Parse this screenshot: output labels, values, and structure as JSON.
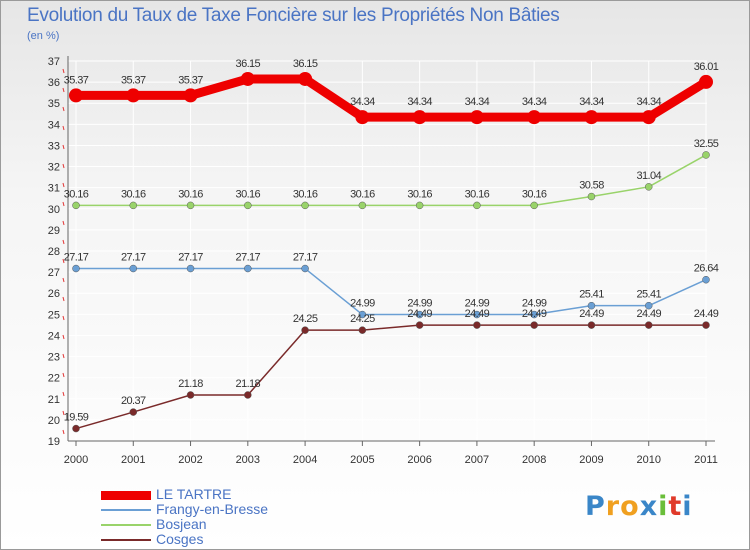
{
  "chart_data": {
    "type": "line",
    "title": "Evolution du Taux de Taxe Foncière sur les Propriétés Non Bâties",
    "unit": "(en %)",
    "xlabel": "",
    "ylabel": "(en %)",
    "x": [
      "2000",
      "2001",
      "2002",
      "2003",
      "2004",
      "2005",
      "2006",
      "2007",
      "2008",
      "2009",
      "2010",
      "2011"
    ],
    "ylim": [
      19,
      37
    ],
    "yticks": [
      "19",
      "20",
      "21",
      "22",
      "23",
      "24",
      "25",
      "26",
      "27",
      "28",
      "29",
      "30",
      "31",
      "32",
      "33",
      "34",
      "35",
      "36",
      "37"
    ],
    "grid": true,
    "series": [
      {
        "name": "LE TARTRE",
        "color": "#ee0000",
        "values": [
          35.37,
          35.37,
          35.37,
          36.15,
          36.15,
          34.34,
          34.34,
          34.34,
          34.34,
          34.34,
          34.34,
          36.01
        ],
        "labels": [
          "35.37",
          "35.37",
          "35.37",
          "36.15",
          "36.15",
          "34.34",
          "34.34",
          "34.34",
          "34.34",
          "34.34",
          "34.34",
          "36.01"
        ]
      },
      {
        "name": "Frangy-en-Bresse",
        "color": "#6a9fd4",
        "values": [
          27.17,
          27.17,
          27.17,
          27.17,
          27.17,
          24.99,
          24.99,
          24.99,
          24.99,
          25.41,
          25.41,
          26.64
        ],
        "labels": [
          "27.17",
          "27.17",
          "27.17",
          "27.17",
          "27.17",
          "24.99",
          "24.99",
          "24.99",
          "24.99",
          "25.41",
          "25.41",
          "26.64"
        ]
      },
      {
        "name": "Bosjean",
        "color": "#99d36a",
        "values": [
          30.16,
          30.16,
          30.16,
          30.16,
          30.16,
          30.16,
          30.16,
          30.16,
          30.16,
          30.58,
          31.04,
          32.55
        ],
        "labels": [
          "30.16",
          "30.16",
          "30.16",
          "30.16",
          "30.16",
          "30.16",
          "30.16",
          "30.16",
          "30.16",
          "30.58",
          "31.04",
          "32.55"
        ]
      },
      {
        "name": "Cosges",
        "color": "#7a2a2a",
        "values": [
          19.59,
          20.37,
          21.18,
          21.18,
          24.25,
          24.25,
          24.49,
          24.49,
          24.49,
          24.49,
          24.49,
          24.49
        ],
        "labels": [
          "19.59",
          "20.37",
          "21.18",
          "21.18",
          "24.25",
          "24.25",
          "24.49",
          "24.49",
          "24.49",
          "24.49",
          "24.49",
          "24.49"
        ]
      }
    ]
  },
  "legend": {
    "items": [
      {
        "label": "LE TARTRE",
        "color": "#ee0000"
      },
      {
        "label": "Frangy-en-Bresse",
        "color": "#6a9fd4"
      },
      {
        "label": "Bosjean",
        "color": "#99d36a"
      },
      {
        "label": "Cosges",
        "color": "#7a2a2a"
      }
    ]
  },
  "logo": {
    "text": "Proxiti",
    "letters": [
      "P",
      "r",
      "o",
      "x",
      "i",
      "t",
      "i"
    ],
    "colors": [
      "#3a86c8",
      "#f0a020",
      "#f0a020",
      "#3a86c8",
      "#6abe3a",
      "#e03a2a",
      "#3a86c8"
    ]
  }
}
